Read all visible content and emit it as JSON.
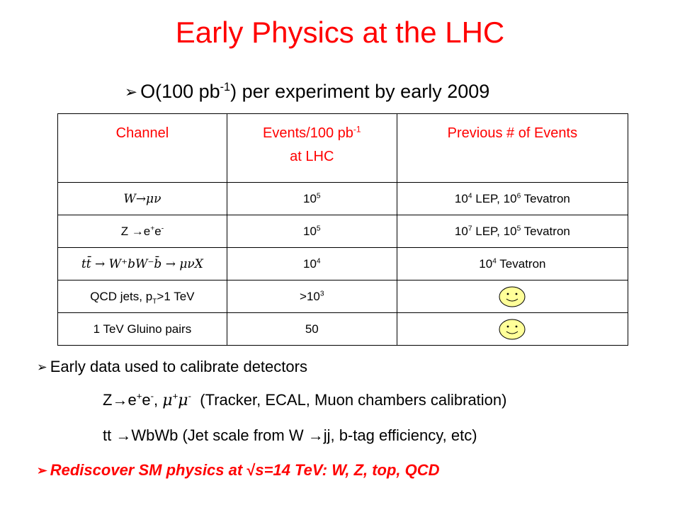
{
  "slide": {
    "title": "Early Physics at the LHC",
    "subtitle_main": "O(100 pb",
    "subtitle_sup": "-1",
    "subtitle_tail": ") per experiment by early 2009"
  },
  "table": {
    "headers": {
      "channel": "Channel",
      "events_prefix": "Events/100 pb",
      "events_sup": "-1",
      "events_line2": "at LHC",
      "previous": "Previous # of Events"
    },
    "rows": [
      {
        "channel": "W→μν",
        "events_base": "10",
        "events_exp": "5",
        "prev_a_base": "10",
        "prev_a_exp": "4",
        "prev_a_text": " LEP, ",
        "prev_b_base": "10",
        "prev_b_exp": "6",
        "prev_b_text": " Tevatron"
      },
      {
        "channel_prefix": "Z →e",
        "channel_sup1": "+",
        "channel_mid": "e",
        "channel_sup2": "-",
        "events_base": "10",
        "events_exp": "5",
        "prev_a_base": "10",
        "prev_a_exp": "7",
        "prev_a_text": " LEP, ",
        "prev_b_base": "10",
        "prev_b_exp": "5",
        "prev_b_text": " Tevatron"
      },
      {
        "channel_formula": "tt̄ → W⁺bW⁻b̄ → μνX",
        "events_base": "10",
        "events_exp": "4",
        "prev_a_base": "10",
        "prev_a_exp": "4",
        "prev_a_text": " Tevatron"
      },
      {
        "channel_prefix": "QCD jets, p",
        "channel_sub": "T",
        "channel_tail": ">1 TeV",
        "events_prefix": ">10",
        "events_exp": "3",
        "prev_icon": "smiley-icon"
      },
      {
        "channel": "1 TeV Gluino pairs",
        "events": "50",
        "prev_icon": "smiley-icon"
      }
    ]
  },
  "bullets": {
    "b1": "Early data used to calibrate detectors",
    "b1_sub1_a": "Z→e",
    "b1_sub1_b": "e",
    "b1_sub1_c": ", ",
    "b1_sub1_mu": "μ",
    "b1_sub1_mu2": "μ",
    "b1_sub1_d": "(Tracker, ECAL, Muon chambers calibration)",
    "b1_sub2": "tt →WbWb (Jet scale from W →jj, b-tag efficiency, etc)",
    "b2_a": "Rediscover SM physics at ",
    "b2_sqrt": "√",
    "b2_b": "s=14 TeV: W, Z, top, QCD",
    "arrow_icon": "arrow-bullet-icon",
    "sup_plus": "+",
    "sup_minus": "-"
  }
}
